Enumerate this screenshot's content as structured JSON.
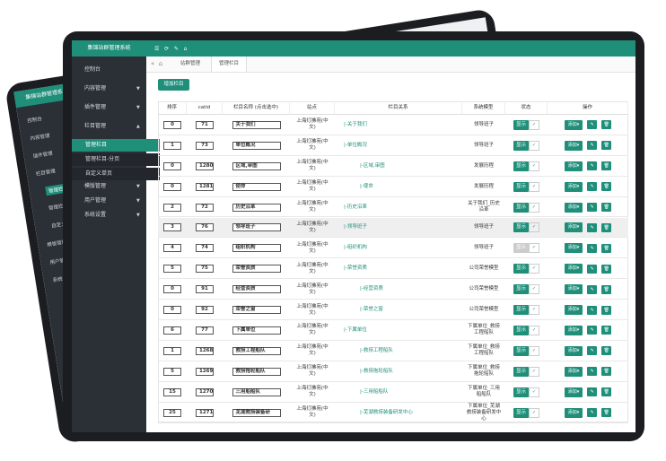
{
  "back": {
    "title": "集锦站群管理系统",
    "menu": [
      "控制台",
      "内容管理",
      "插件管理",
      "栏目管理",
      "管理栏目",
      "管理栏目-分页",
      "自定义单页",
      "模板管理",
      "用户管理",
      "系统设置"
    ]
  },
  "front": {
    "title": "集锦站群管理系统",
    "menu": [
      "控制台",
      "内容管理",
      "插件管理",
      "栏目管理",
      "管理栏目",
      "管理栏目-分页",
      "自定义单页",
      "模版管理",
      "用户管理",
      "系统设置"
    ],
    "tabs": [
      "站群管理",
      "管理栏目"
    ],
    "add_button": "增加栏目",
    "table": {
      "headers": [
        "排序",
        "catid",
        "栏目名称 (点击选中)",
        "站点",
        "栏目关系",
        "系统模型",
        "状态",
        "操作"
      ],
      "rows": [
        [
          "0",
          "71",
          "关于我们",
          "上海灯拂苑(中文)",
          "|-关于我们",
          "领导班子",
          "显示",
          "添加▾"
        ],
        [
          "1",
          "73",
          "单位概况",
          "上海灯拂苑(中文)",
          "|-单位概况",
          "领导班子",
          "显示",
          "添加▾"
        ],
        [
          "0",
          "1280",
          "区域,审图",
          "上海灯拂苑(中文)",
          "|-区域,审图",
          "发展历程",
          "显示",
          "添加▾"
        ],
        [
          "0",
          "1281",
          "使命",
          "上海灯拂苑(中文)",
          "|-使命",
          "发展历程",
          "显示",
          "添加▾"
        ],
        [
          "2",
          "72",
          "历史沿革",
          "上海灯拂苑(中文)",
          "|-历史沿革",
          "关于我们_历史沿革",
          "显示",
          "添加▾"
        ],
        [
          "3",
          "76",
          "领导班子",
          "上海灯拂苑(中文)",
          "|-领导班子",
          "领导班子",
          "显示",
          "添加▾"
        ],
        [
          "4",
          "74",
          "组织机构",
          "上海灯拂苑(中文)",
          "|-组织机构",
          "领导班子",
          "显示",
          "添加▾"
        ],
        [
          "5",
          "75",
          "荣誉资质",
          "上海灯拂苑(中文)",
          "|-荣誉资质",
          "公司荣誉模型",
          "显示",
          "添加▾"
        ],
        [
          "0",
          "91",
          "经营资质",
          "上海灯拂苑(中文)",
          "|-经营资质",
          "公司荣誉模型",
          "显示",
          "添加▾"
        ],
        [
          "0",
          "92",
          "荣誉之窗",
          "上海灯拂苑(中文)",
          "|-荣誉之窗",
          "公司荣誉模型",
          "显示",
          "添加▾"
        ],
        [
          "6",
          "77",
          "下属单位",
          "上海灯拂苑(中文)",
          "|-下属单位",
          "下属单位_救捞工程船队",
          "显示",
          "添加▾"
        ],
        [
          "1",
          "1268",
          "救捞工程船队",
          "上海灯拂苑(中文)",
          "|-救捞工程船队",
          "下属单位_救捞工程船队",
          "显示",
          "添加▾"
        ],
        [
          "5",
          "1269",
          "救捞拖轮船队",
          "上海灯拂苑(中文)",
          "|-救捞拖轮船队",
          "下属单位_救捞拖轮船队",
          "显示",
          "添加▾"
        ],
        [
          "15",
          "1270",
          "三用船船队",
          "上海灯拂苑(中文)",
          "|-三用船船队",
          "下属单位_三用船船队",
          "显示",
          "添加▾"
        ],
        [
          "25",
          "1271",
          "芜湖救捞装备研",
          "上海灯拂苑(中文)",
          "|-芜湖救捞装备研发中心",
          "下属单位_芜湖救捞装备研发中心",
          "显示",
          "添加▾"
        ]
      ]
    }
  }
}
